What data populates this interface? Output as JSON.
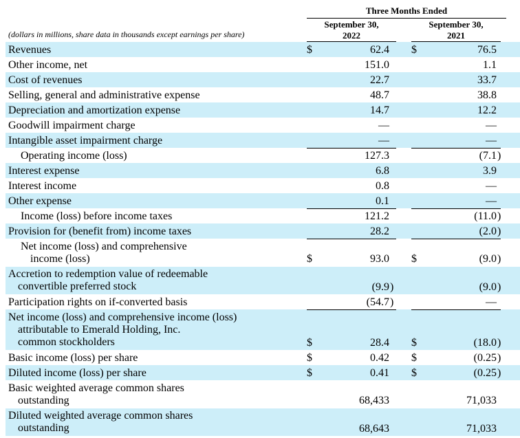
{
  "header": {
    "group_title": "Three Months Ended",
    "col1": [
      "September 30,",
      "2022"
    ],
    "col2": [
      "September 30,",
      "2021"
    ],
    "units_note": "(dollars in millions, share data in thousands except earnings per share)"
  },
  "rows": [
    {
      "label": [
        "Revenues"
      ],
      "indent": 0,
      "c1": "62.4",
      "c2": "76.5",
      "dollar1": true,
      "dollar2": true
    },
    {
      "label": [
        "Other income, net"
      ],
      "indent": 0,
      "c1": "151.0",
      "c2": "1.1"
    },
    {
      "label": [
        "Cost of revenues"
      ],
      "indent": 0,
      "c1": "22.7",
      "c2": "33.7"
    },
    {
      "label": [
        "Selling, general and administrative expense"
      ],
      "indent": 0,
      "c1": "48.7",
      "c2": "38.8"
    },
    {
      "label": [
        "Depreciation and amortization expense"
      ],
      "indent": 0,
      "c1": "14.7",
      "c2": "12.2"
    },
    {
      "label": [
        "Goodwill impairment charge"
      ],
      "indent": 0,
      "c1": "—",
      "c2": "—"
    },
    {
      "label": [
        "Intangible asset impairment charge"
      ],
      "indent": 0,
      "c1": "—",
      "c2": "—"
    },
    {
      "label": [
        "Operating income (loss)"
      ],
      "indent": 1,
      "c1": "127.3",
      "c2": "(7.1",
      "close2": ")"
    },
    {
      "label": [
        "Interest expense"
      ],
      "indent": 0,
      "c1": "6.8",
      "c2": "3.9"
    },
    {
      "label": [
        "Interest income"
      ],
      "indent": 0,
      "c1": "0.8",
      "c2": "—"
    },
    {
      "label": [
        "Other expense"
      ],
      "indent": 0,
      "c1": "0.1",
      "c2": "—"
    },
    {
      "label": [
        "Income (loss) before income taxes"
      ],
      "indent": 1,
      "c1": "121.2",
      "c2": "(11.0",
      "close2": ")"
    },
    {
      "label": [
        "Provision for (benefit from) income taxes"
      ],
      "indent": 0,
      "c1": "28.2",
      "c2": "(2.0",
      "close2": ")"
    },
    {
      "label": [
        "Net income (loss) and comprehensive",
        "income (loss)"
      ],
      "indent": 1,
      "c1": "93.0",
      "c2": "(9.0",
      "close2": ")",
      "dollar1": true,
      "dollar2": true
    },
    {
      "label": [
        "Accretion to redemption value of redeemable",
        "convertible preferred stock"
      ],
      "indent": 0,
      "c1": "(9.9",
      "close1": ")",
      "c2": "(9.0",
      "close2": ")"
    },
    {
      "label": [
        "Participation rights on if-converted basis"
      ],
      "indent": 0,
      "c1": "(54.7",
      "close1": ")",
      "c2": "—"
    },
    {
      "label": [
        "Net income (loss) and comprehensive income (loss)",
        "attributable to Emerald Holding, Inc.",
        "common stockholders"
      ],
      "indent": 0,
      "c1": "28.4",
      "c2": "(18.0",
      "close2": ")",
      "dollar1": true,
      "dollar2": true
    },
    {
      "label": [
        "Basic income (loss) per share"
      ],
      "indent": 0,
      "c1": "0.42",
      "c2": "(0.25",
      "close2": ")",
      "dollar1": true,
      "dollar2": true
    },
    {
      "label": [
        "Diluted income (loss) per share"
      ],
      "indent": 0,
      "c1": "0.41",
      "c2": "(0.25",
      "close2": ")",
      "dollar1": true,
      "dollar2": true
    },
    {
      "label": [
        "Basic weighted average common shares",
        "outstanding"
      ],
      "indent": 0,
      "c1": "68,433",
      "c2": "71,033"
    },
    {
      "label": [
        "Diluted weighted average common shares",
        "outstanding"
      ],
      "indent": 0,
      "c1": "68,643",
      "c2": "71,033"
    }
  ],
  "currency_symbol": "$"
}
